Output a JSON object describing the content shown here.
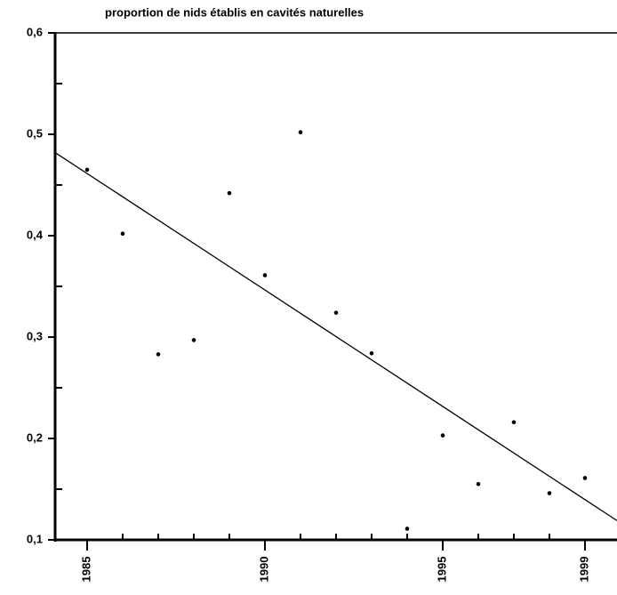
{
  "chart_data": {
    "type": "scatter",
    "title": "proportion de nids établis en cavités naturelles",
    "x": [
      1985,
      1986,
      1987,
      1988,
      1989,
      1990,
      1991,
      1992,
      1993,
      1994,
      1995,
      1996,
      1997,
      1998,
      1999
    ],
    "values": [
      0.465,
      0.402,
      0.283,
      0.297,
      0.442,
      0.361,
      0.502,
      0.324,
      0.284,
      0.111,
      0.203,
      0.155,
      0.216,
      0.146,
      0.161
    ],
    "color": "#000000",
    "trendline": {
      "x": [
        1984.1,
        1999.9
      ],
      "values": [
        0.482,
        0.119
      ]
    },
    "xlim": [
      1984.1,
      1999.9
    ],
    "ylim": [
      0.1,
      0.6
    ],
    "xticks": [
      1985,
      1990,
      1995,
      1999
    ],
    "xminorticks": [
      1986,
      1987,
      1988,
      1989,
      1991,
      1992,
      1993,
      1994,
      1996,
      1997,
      1998
    ],
    "yticks": [
      {
        "value": 0.1,
        "label": "0,1"
      },
      {
        "value": 0.2,
        "label": "0,2"
      },
      {
        "value": 0.3,
        "label": "0,3"
      },
      {
        "value": 0.4,
        "label": "0,4"
      },
      {
        "value": 0.5,
        "label": "0,5"
      },
      {
        "value": 0.6,
        "label": "0,6"
      }
    ],
    "yminorticks": [
      0.15,
      0.25,
      0.35,
      0.45,
      0.55
    ]
  }
}
